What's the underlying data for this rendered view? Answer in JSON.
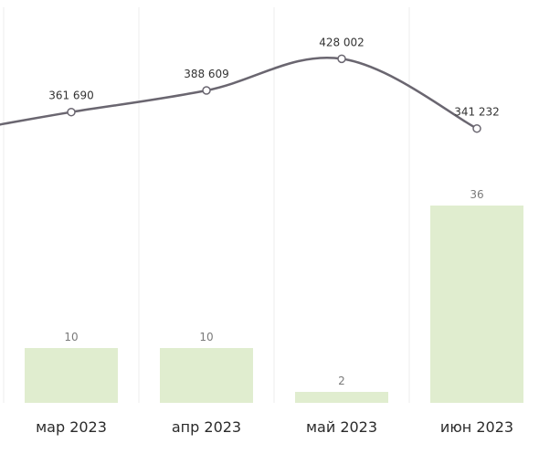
{
  "chart_data": {
    "type": "bar",
    "categories": [
      "мар 2023",
      "апр 2023",
      "май 2023",
      "июн 2023"
    ],
    "series": [
      {
        "type": "bar",
        "values": [
          10,
          10,
          2,
          36
        ],
        "labels": [
          "10",
          "10",
          "2",
          "36"
        ]
      },
      {
        "type": "line",
        "values": [
          361690,
          388609,
          428002,
          341232
        ],
        "labels": [
          "361 690",
          "388 609",
          "428 002",
          "341 232"
        ]
      }
    ],
    "colors": {
      "bar": "#e0edcf",
      "line": "#6a6670",
      "bar_label": "#7a7a7a",
      "line_label": "#333333",
      "tick_label": "#2b2b2b",
      "grid": "#ececec",
      "marker_fill": "#ffffff"
    },
    "grid": true
  }
}
